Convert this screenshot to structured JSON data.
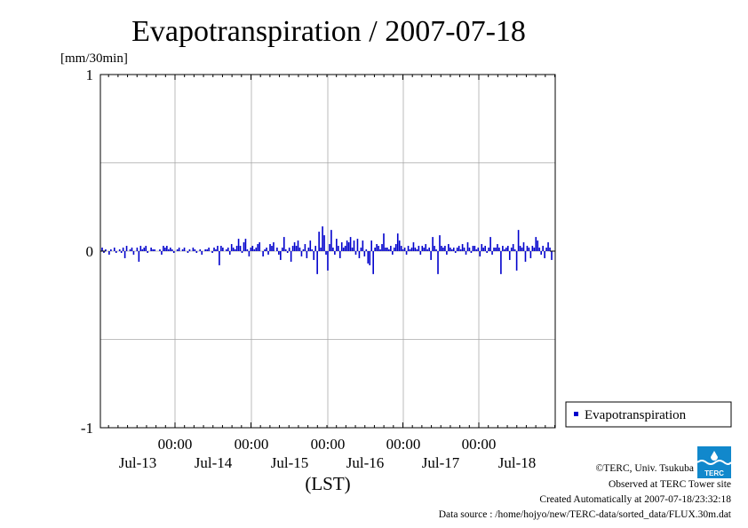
{
  "chart_data": {
    "type": "bar",
    "title": "Evapotranspiration / 2007-07-18",
    "yunit": "[mm/30min]",
    "ylim": [
      -1,
      1
    ],
    "yticks": [
      1,
      0,
      -1
    ],
    "xlabel": "(LST)",
    "grid": true,
    "legend_position": "lower-right, outside plot",
    "time_ticks": [
      "00:00",
      "00:00",
      "00:00",
      "00:00",
      "00:00"
    ],
    "day_labels": [
      "Jul-13",
      "Jul-14",
      "Jul-15",
      "Jul-16",
      "Jul-17",
      "Jul-18"
    ],
    "series": [
      {
        "name": "Evapotranspiration",
        "color": "#0000cc",
        "interval": "30min",
        "values": [
          0.02,
          -0.01,
          0.01,
          0.0,
          -0.02,
          0.01,
          0.0,
          0.02,
          -0.01,
          0.0,
          0.01,
          -0.01,
          0.02,
          -0.04,
          0.03,
          0.0,
          0.01,
          0.02,
          -0.02,
          0.0,
          0.02,
          -0.06,
          0.03,
          0.01,
          0.02,
          0.03,
          -0.01,
          0.0,
          0.02,
          0.01,
          0.01,
          0.0,
          0.0,
          0.01,
          -0.02,
          0.03,
          0.02,
          0.03,
          0.01,
          0.02,
          0.01,
          -0.01,
          0.0,
          0.01,
          0.02,
          0.0,
          0.01,
          0.02,
          0.0,
          -0.01,
          0.01,
          0.0,
          0.02,
          0.01,
          -0.01,
          0.0,
          0.01,
          -0.02,
          0.0,
          0.01,
          0.01,
          0.02,
          0.0,
          -0.01,
          0.02,
          0.01,
          0.03,
          -0.08,
          0.03,
          0.02,
          0.0,
          0.01,
          0.02,
          -0.02,
          0.04,
          0.02,
          0.01,
          0.03,
          0.07,
          0.03,
          -0.01,
          0.05,
          0.07,
          0.01,
          -0.03,
          0.02,
          0.03,
          0.01,
          0.02,
          0.04,
          0.05,
          0.0,
          -0.03,
          0.01,
          0.02,
          -0.02,
          0.04,
          0.03,
          0.05,
          0.0,
          0.02,
          -0.02,
          -0.05,
          0.02,
          0.08,
          0.01,
          -0.01,
          0.02,
          -0.06,
          0.03,
          0.05,
          0.03,
          0.06,
          0.02,
          -0.03,
          0.01,
          0.04,
          -0.04,
          0.02,
          0.06,
          0.01,
          -0.05,
          0.03,
          -0.13,
          0.11,
          0.02,
          0.14,
          0.09,
          -0.02,
          -0.11,
          0.04,
          0.12,
          0.02,
          -0.02,
          0.07,
          0.03,
          -0.04,
          0.05,
          0.02,
          0.03,
          0.06,
          0.05,
          0.08,
          0.02,
          0.06,
          -0.02,
          0.07,
          -0.04,
          0.02,
          0.06,
          -0.03,
          0.01,
          -0.07,
          -0.08,
          0.06,
          -0.13,
          0.02,
          0.04,
          0.03,
          0.01,
          0.04,
          0.1,
          0.02,
          0.02,
          0.01,
          0.03,
          -0.02,
          0.02,
          0.04,
          0.1,
          0.06,
          0.03,
          0.01,
          0.02,
          -0.02,
          0.03,
          0.01,
          0.02,
          0.05,
          0.02,
          0.01,
          0.03,
          -0.02,
          0.03,
          0.02,
          0.04,
          0.01,
          0.02,
          -0.05,
          0.08,
          0.03,
          0.01,
          -0.13,
          0.09,
          0.03,
          0.02,
          0.03,
          -0.02,
          0.04,
          0.02,
          0.01,
          0.02,
          -0.01,
          0.02,
          0.03,
          0.01,
          0.04,
          0.02,
          -0.02,
          0.05,
          0.02,
          -0.01,
          0.03,
          0.03,
          0.01,
          0.02,
          -0.03,
          0.04,
          0.02,
          0.03,
          -0.01,
          0.02,
          0.08,
          -0.02,
          0.02,
          0.02,
          0.04,
          0.02,
          -0.13,
          0.03,
          0.01,
          0.02,
          0.03,
          -0.05,
          0.02,
          0.04,
          0.01,
          -0.11,
          0.12,
          0.03,
          0.02,
          0.05,
          -0.06,
          0.03,
          0.02,
          -0.04,
          0.03,
          0.02,
          0.08,
          0.06,
          0.02,
          -0.02,
          0.03,
          -0.04,
          0.02,
          0.05,
          0.02,
          -0.05
        ]
      }
    ]
  },
  "footer": {
    "copyright": "©TERC, Univ. Tsukuba",
    "observed": "Observed at TERC Tower site",
    "created": "Created Automatically at 2007-07-18/23:32:18",
    "source": "Data source : /home/hojyo/new/TERC-data/sorted_data/FLUX.30m.dat",
    "logo_text": "TERC"
  }
}
